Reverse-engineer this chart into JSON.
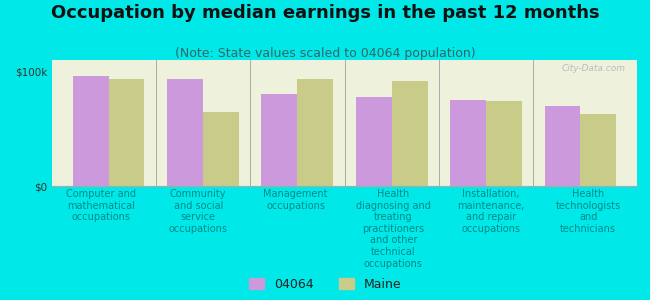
{
  "title": "Occupation by median earnings in the past 12 months",
  "subtitle": "(Note: State values scaled to 04064 population)",
  "background_color": "#00e8e8",
  "plot_bg_color": "#eef2dc",
  "categories": [
    "Computer and\nmathematical\noccupations",
    "Community\nand social\nservice\noccupations",
    "Management\noccupations",
    "Health\ndiagnosing and\ntreating\npractitioners\nand other\ntechnical\noccupations",
    "Installation,\nmaintenance,\nand repair\noccupations",
    "Health\ntechnologists\nand\ntechnicians"
  ],
  "values_04064": [
    96000,
    93000,
    80000,
    78000,
    75000,
    70000
  ],
  "values_maine": [
    93000,
    65000,
    93000,
    92000,
    74000,
    63000
  ],
  "color_04064": "#cc99dd",
  "color_maine": "#c8cc88",
  "ylim": [
    0,
    110000
  ],
  "ytick_labels": [
    "$0",
    "$100k"
  ],
  "legend_04064": "04064",
  "legend_maine": "Maine",
  "bar_width": 0.38,
  "watermark": "City-Data.com",
  "title_fontsize": 13,
  "subtitle_fontsize": 9,
  "tick_label_fontsize": 7.5,
  "xtick_color": "#008888"
}
